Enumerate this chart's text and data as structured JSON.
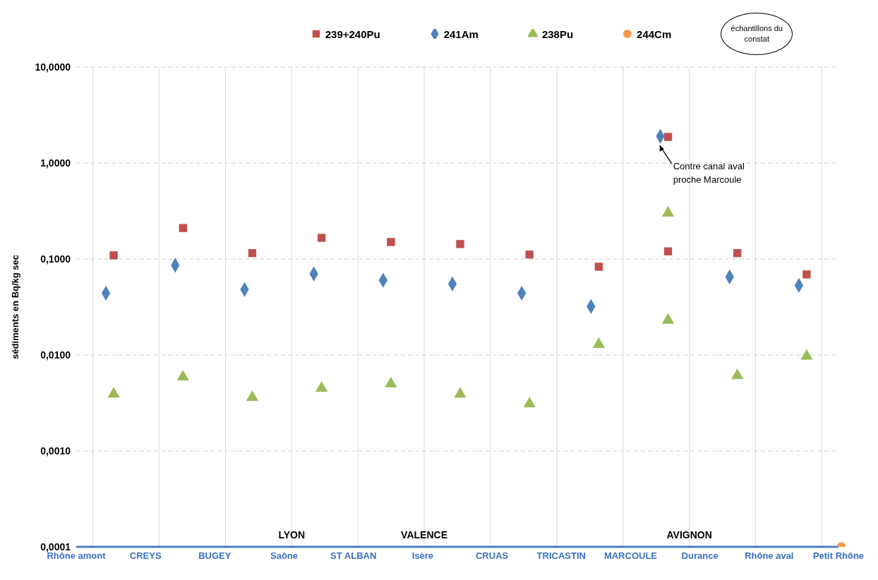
{
  "chart_data": {
    "type": "scatter",
    "ylabel": "sédiments en Bq/kg sec",
    "log": "y",
    "grid": true,
    "legend": "top",
    "categories": [
      "Rhône amont",
      null,
      "CREYS",
      null,
      "BUGEY",
      null,
      "Saône",
      null,
      "ST ALBAN",
      null,
      "Isère",
      null,
      "CRUAS",
      null,
      "TRICASTIN",
      null,
      "MARCOULE",
      null,
      "Durance",
      null,
      "Rhône aval",
      null,
      "Petit Rhône"
    ],
    "ylim": [
      0.0001,
      10
    ],
    "yticks": [
      {
        "value": 0.0001,
        "label": "0,0001"
      },
      {
        "value": 0.001,
        "label": "0,0010"
      },
      {
        "value": 0.01,
        "label": "0,0100"
      },
      {
        "value": 0.1,
        "label": "0,1000"
      },
      {
        "value": 1,
        "label": "1,0000"
      },
      {
        "value": 10,
        "label": "10,0000"
      }
    ],
    "series": [
      {
        "name": "239+240Pu",
        "color": "#c0504d",
        "marker": "square",
        "values": [
          null,
          0.109,
          null,
          0.21,
          null,
          0.115,
          null,
          0.166,
          null,
          0.15,
          null,
          0.143,
          null,
          0.111,
          null,
          0.083,
          null,
          1.87,
          null,
          0.115,
          null,
          0.069,
          null
        ]
      },
      {
        "name": "241Am",
        "color": "#4f81bd",
        "marker": "diamond",
        "values": [
          null,
          0.044,
          null,
          0.086,
          null,
          0.048,
          null,
          0.07,
          null,
          0.06,
          null,
          0.055,
          null,
          0.044,
          null,
          0.032,
          null,
          1.9,
          null,
          0.065,
          null,
          0.053,
          null
        ]
      },
      {
        "name": "238Pu",
        "color": "#9bbb59",
        "marker": "triangle",
        "values": [
          null,
          0.0039,
          null,
          0.0059,
          null,
          0.0036,
          null,
          0.0045,
          null,
          0.005,
          null,
          0.0039,
          null,
          0.0031,
          null,
          0.0129,
          null,
          0.3,
          null,
          0.0061,
          null,
          0.0097,
          null
        ]
      },
      {
        "name": "244Cm",
        "color": "#f79646",
        "marker": "circle",
        "values": [
          null,
          null,
          null,
          null,
          null,
          null,
          null,
          null,
          null,
          null,
          null,
          null,
          null,
          null,
          null,
          null,
          null,
          null,
          null,
          null,
          null,
          null,
          0.0001
        ]
      },
      {
        "color": "#c0504d",
        "marker": "square",
        "values": [
          null,
          null,
          null,
          null,
          null,
          null,
          null,
          null,
          null,
          null,
          null,
          null,
          null,
          null,
          null,
          null,
          null,
          0.12,
          null,
          null,
          null,
          null,
          null
        ]
      },
      {
        "color": "#9bbb59",
        "marker": "triangle",
        "values": [
          null,
          null,
          null,
          null,
          null,
          null,
          null,
          null,
          null,
          null,
          null,
          null,
          null,
          null,
          null,
          null,
          null,
          0.023,
          null,
          null,
          null,
          null,
          null
        ]
      }
    ],
    "annotations": [
      "échantillons du constat",
      "Contre canal aval proche Marcoule",
      "LYON",
      "VALENCE",
      "AVIGNON"
    ]
  }
}
